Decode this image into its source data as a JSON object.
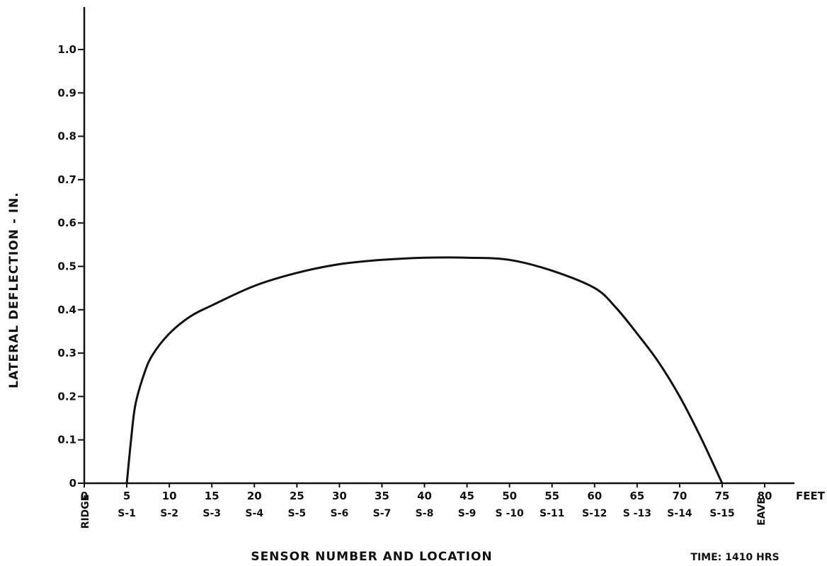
{
  "chart_data": {
    "type": "line",
    "title": "",
    "xlabel": "SENSOR NUMBER AND LOCATION",
    "ylabel": "LATERAL DEFLECTION - IN.",
    "x_unit_label": "FEET",
    "xlim": [
      0,
      80
    ],
    "ylim": [
      0,
      1.0
    ],
    "x_ticks": [
      0,
      5,
      10,
      15,
      20,
      25,
      30,
      35,
      40,
      45,
      50,
      55,
      60,
      65,
      70,
      75,
      80
    ],
    "y_ticks": [
      "0",
      "0.1",
      "0.2",
      "0.3",
      "0.4",
      "0.5",
      "0.6",
      "0.7",
      "0.8",
      "0.9",
      "1.0"
    ],
    "grid": false,
    "sensors": [
      {
        "label": "S-1",
        "x": 5
      },
      {
        "label": "S-2",
        "x": 10
      },
      {
        "label": "S-3",
        "x": 15
      },
      {
        "label": "S-4",
        "x": 20
      },
      {
        "label": "S-5",
        "x": 25
      },
      {
        "label": "S-6",
        "x": 30
      },
      {
        "label": "S-7",
        "x": 35
      },
      {
        "label": "S-8",
        "x": 40
      },
      {
        "label": "S-9",
        "x": 45
      },
      {
        "label": "S -10",
        "x": 50
      },
      {
        "label": "S-11",
        "x": 55
      },
      {
        "label": "S-12",
        "x": 60
      },
      {
        "label": "S -13",
        "x": 65
      },
      {
        "label": "S-14",
        "x": 70
      },
      {
        "label": "S-15",
        "x": 75
      }
    ],
    "end_labels": {
      "start": "RIDGE",
      "end": "EAVE"
    },
    "series": [
      {
        "x": [
          5,
          5.5,
          6,
          7,
          8,
          10,
          12.5,
          15,
          20,
          25,
          30,
          35,
          40,
          45,
          50,
          55,
          60,
          62.5,
          65,
          67.5,
          70,
          72.5,
          75
        ],
        "y": [
          0,
          0.1,
          0.18,
          0.25,
          0.295,
          0.345,
          0.385,
          0.41,
          0.455,
          0.485,
          0.505,
          0.515,
          0.52,
          0.52,
          0.515,
          0.49,
          0.45,
          0.405,
          0.345,
          0.28,
          0.2,
          0.105,
          0
        ]
      }
    ]
  },
  "annotation": "TIME: 1410 HRS"
}
